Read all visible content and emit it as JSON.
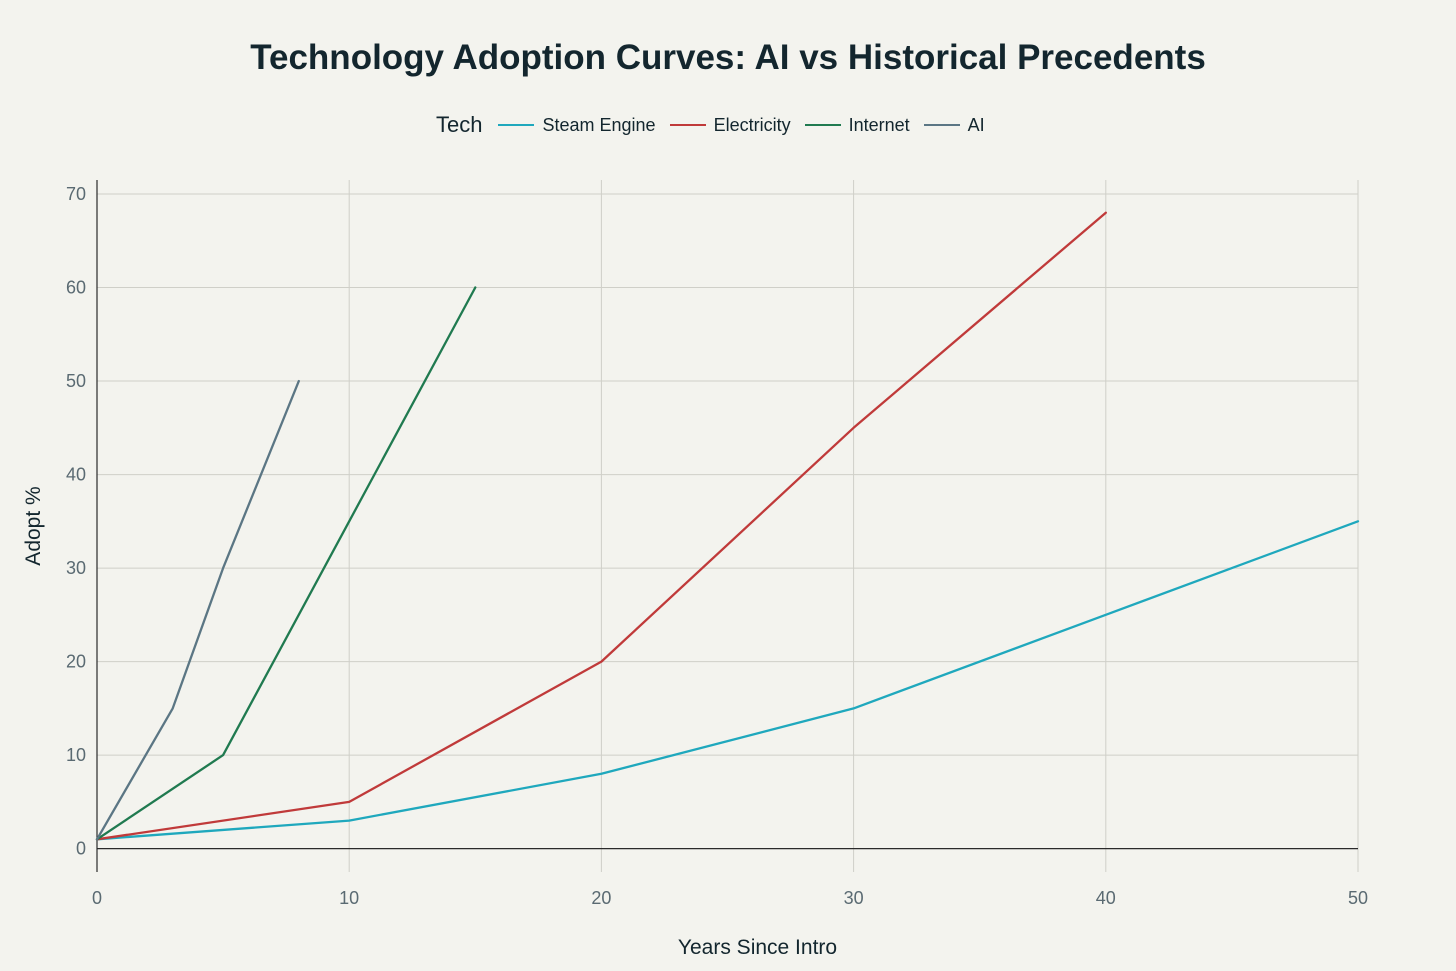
{
  "chart_data": {
    "type": "line",
    "title": "Technology Adoption Curves: AI vs Historical Precedents",
    "xlabel": "Years Since Intro",
    "ylabel": "Adopt %",
    "legend_title": "Tech",
    "legend_position": "top-center",
    "xlim": [
      0,
      50
    ],
    "ylim": [
      -2.5,
      71.5
    ],
    "x_ticks": [
      0,
      10,
      20,
      30,
      40,
      50
    ],
    "y_ticks": [
      0,
      10,
      20,
      30,
      40,
      50,
      60,
      70
    ],
    "grid": true,
    "series": [
      {
        "name": "Steam Engine",
        "color": "#1fa8bd",
        "x": [
          0,
          10,
          20,
          30,
          40,
          50
        ],
        "y": [
          1,
          3,
          8,
          15,
          25,
          35
        ]
      },
      {
        "name": "Electricity",
        "color": "#c03a3a",
        "x": [
          0,
          10,
          20,
          30,
          40
        ],
        "y": [
          1,
          5,
          20,
          45,
          68
        ]
      },
      {
        "name": "Internet",
        "color": "#207a50",
        "x": [
          0,
          5,
          10,
          15
        ],
        "y": [
          1,
          10,
          35,
          60
        ]
      },
      {
        "name": "AI",
        "color": "#5b7684",
        "x": [
          0,
          3,
          5,
          8
        ],
        "y": [
          1,
          15,
          30,
          50
        ]
      }
    ]
  }
}
